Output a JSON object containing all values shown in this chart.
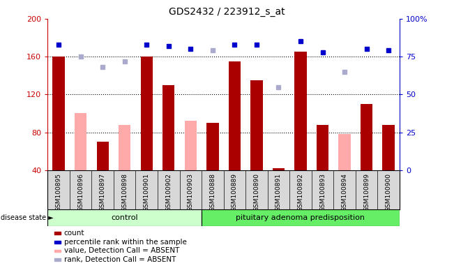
{
  "title": "GDS2432 / 223912_s_at",
  "samples": [
    "GSM100895",
    "GSM100896",
    "GSM100897",
    "GSM100898",
    "GSM100901",
    "GSM100902",
    "GSM100903",
    "GSM100888",
    "GSM100889",
    "GSM100890",
    "GSM100891",
    "GSM100892",
    "GSM100893",
    "GSM100894",
    "GSM100899",
    "GSM100900"
  ],
  "count_values": [
    160,
    null,
    70,
    null,
    160,
    130,
    null,
    90,
    155,
    135,
    42,
    165,
    88,
    null,
    110,
    88
  ],
  "pink_values": [
    null,
    100,
    null,
    88,
    null,
    null,
    92,
    null,
    null,
    null,
    null,
    null,
    null,
    78,
    null,
    null
  ],
  "blue_squares": [
    83,
    null,
    null,
    null,
    83,
    82,
    80,
    null,
    83,
    83,
    null,
    85,
    78,
    null,
    80,
    79
  ],
  "light_blue_squares": [
    null,
    75,
    68,
    72,
    null,
    null,
    null,
    79,
    null,
    null,
    55,
    null,
    null,
    65,
    null,
    null
  ],
  "n_control": 7,
  "n_disease": 9,
  "control_label": "control",
  "disease_label": "pituitary adenoma predisposition",
  "disease_state_label": "disease state",
  "ylim": [
    40,
    200
  ],
  "yticks": [
    40,
    80,
    120,
    160,
    200
  ],
  "y2lim": [
    0,
    100
  ],
  "y2ticks": [
    0,
    25,
    50,
    75,
    100
  ],
  "bar_color": "#aa0000",
  "pink_color": "#ffaaaa",
  "blue_color": "#0000cc",
  "light_blue_color": "#aaaacc",
  "control_bg": "#ccffcc",
  "disease_bg": "#66ee66",
  "axis_label_color_left": "#cc0000",
  "axis_label_color_right": "#0000cc",
  "legend_items": [
    {
      "label": "count",
      "color": "#aa0000"
    },
    {
      "label": "percentile rank within the sample",
      "color": "#0000cc"
    },
    {
      "label": "value, Detection Call = ABSENT",
      "color": "#ffaaaa"
    },
    {
      "label": "rank, Detection Call = ABSENT",
      "color": "#aaaacc"
    }
  ]
}
